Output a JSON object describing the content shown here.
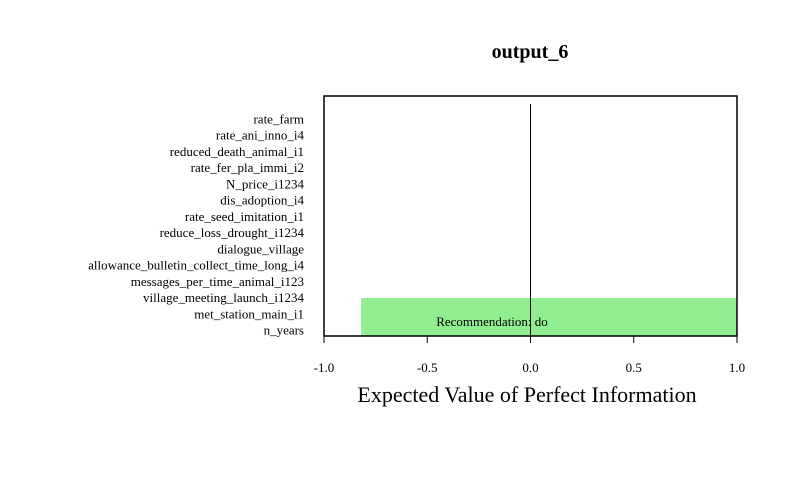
{
  "chart_data": {
    "type": "bar",
    "orientation": "horizontal",
    "title": "output_6",
    "xlabel": "Expected Value of Perfect Information",
    "ylabel": "",
    "xlim": [
      -1.0,
      1.0
    ],
    "xticks": [
      -1.0,
      -0.5,
      0.0,
      0.5,
      1.0
    ],
    "xtick_labels": [
      "-1.0",
      "-0.5",
      "0.0",
      "0.5",
      "1.0"
    ],
    "reference_line_x": 0.0,
    "categories": [
      "rate_farm",
      "rate_ani_inno_i4",
      "reduced_death_animal_i1",
      "rate_fer_pla_immi_i2",
      "N_price_i1234",
      "dis_adoption_i4",
      "rate_seed_imitation_i1",
      "reduce_loss_drought_i1234",
      "dialogue_village",
      "allowance_bulletin_collect_time_long_i4",
      "messages_per_time_animal_i123",
      "village_meeting_launch_i1234",
      "met_station_main_i1",
      "n_years"
    ],
    "values": [
      0,
      0,
      0,
      0,
      0,
      0,
      0,
      0,
      0,
      0,
      0,
      0,
      0,
      0
    ],
    "recommendation_band": {
      "xmin": -0.82,
      "xmax": 1.0,
      "label": "Recommendation: do",
      "color": "#90EE90"
    },
    "grid": false,
    "legend": "none"
  }
}
